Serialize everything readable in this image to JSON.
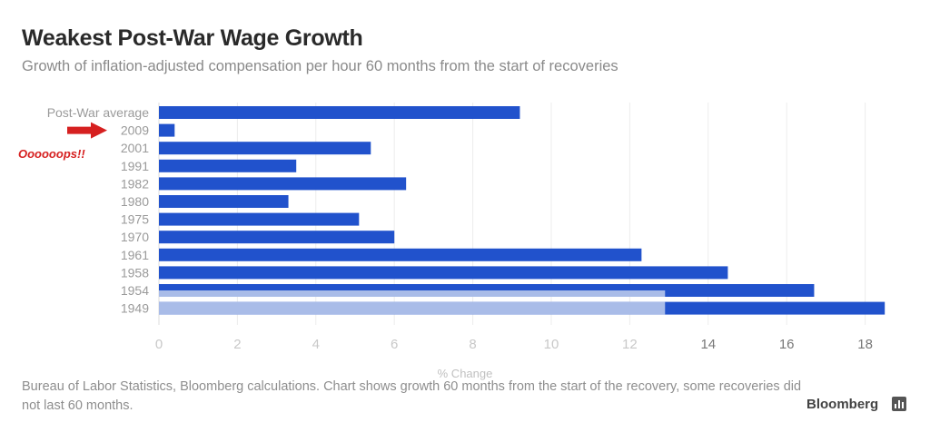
{
  "chart_data": {
    "type": "bar",
    "orientation": "horizontal",
    "title": "Weakest Post-War Wage Growth",
    "subtitle": "Growth of inflation-adjusted compensation per hour 60 months from the start of recoveries",
    "xlabel": "% Change",
    "ylabel": "",
    "xlim": [
      0,
      18.6
    ],
    "xticks": [
      0,
      2,
      4,
      6,
      8,
      10,
      12,
      14,
      16,
      18
    ],
    "grid": true,
    "categories": [
      "Post-War average",
      "2009",
      "2001",
      "1991",
      "1982",
      "1980",
      "1975",
      "1970",
      "1961",
      "1958",
      "1954",
      "1949"
    ],
    "values": [
      9.2,
      0.4,
      5.4,
      3.5,
      6.3,
      3.3,
      5.1,
      6.0,
      12.3,
      14.5,
      16.7,
      18.5
    ],
    "overlay_bar": {
      "categories": [
        "1954",
        "1949"
      ],
      "value": 12.9,
      "color": "#a9bce8"
    },
    "bar_color": "#2152cc",
    "annotation": {
      "text": "Oooooops!!",
      "points_to": "2009",
      "color": "#d62020"
    }
  },
  "footer": {
    "source": "Bureau of Labor Statistics, Bloomberg calculations. Chart shows growth 60 months from the start of the recovery, some recoveries did not last 60 months.",
    "brand": "Bloomberg"
  }
}
